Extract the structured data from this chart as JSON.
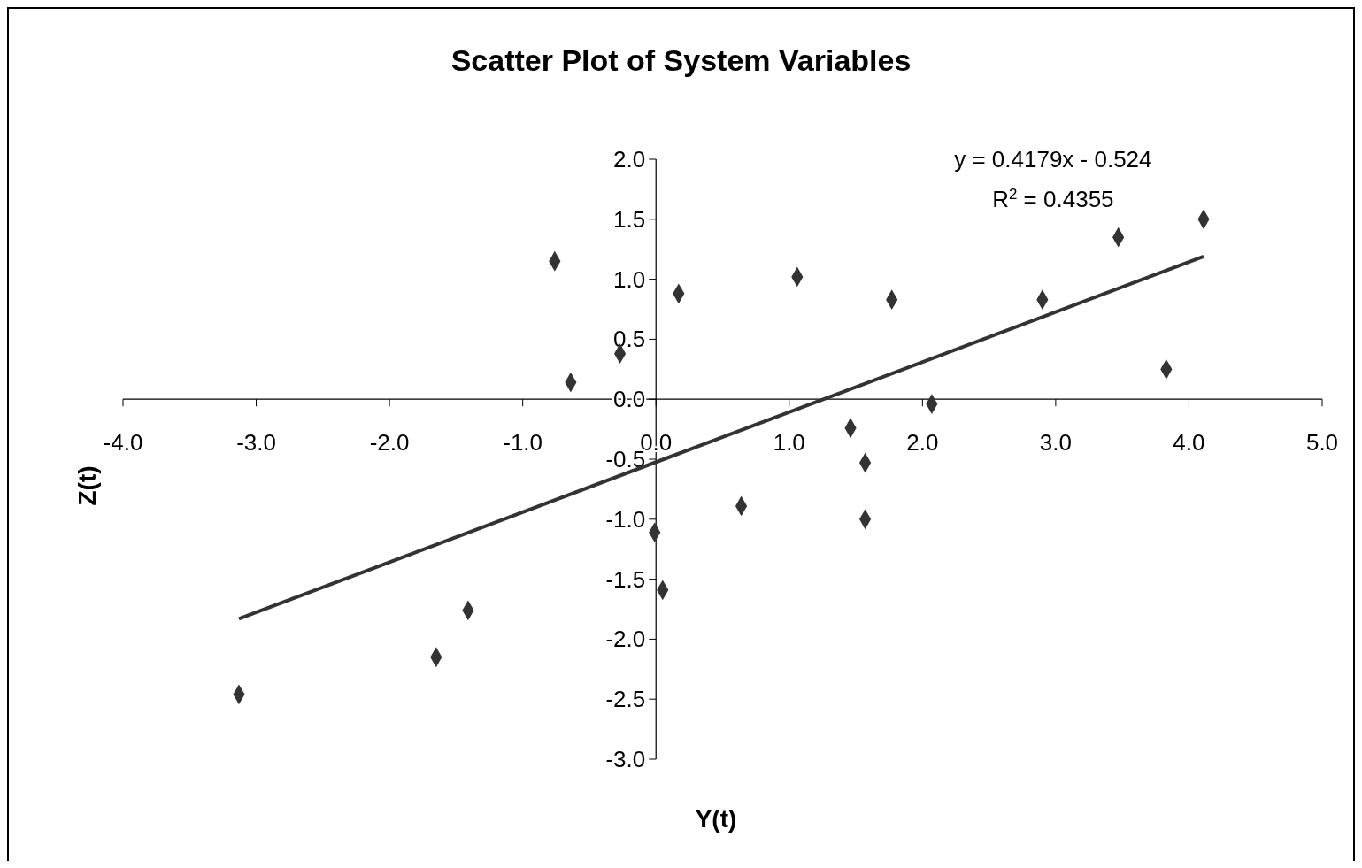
{
  "chart_data": {
    "type": "scatter",
    "title": "Scatter Plot of System Variables",
    "xlabel": "Y(t)",
    "ylabel": "Z(t)",
    "xlim": [
      -4.0,
      5.0
    ],
    "xticks": [
      {
        "value": -4,
        "label": "-4.0"
      },
      {
        "value": -3,
        "label": "-3.0"
      },
      {
        "value": -2,
        "label": "-2.0"
      },
      {
        "value": -1,
        "label": "-1.0"
      },
      {
        "value": 0,
        "label": "0.0"
      },
      {
        "value": 1,
        "label": "1.0"
      },
      {
        "value": 2,
        "label": "2.0"
      },
      {
        "value": 3,
        "label": "3.0"
      },
      {
        "value": 4,
        "label": "4.0"
      },
      {
        "value": 5,
        "label": "5.0"
      }
    ],
    "ylim": [
      -3.0,
      2.0
    ],
    "yticks": [
      {
        "value": -3,
        "label": "-3.0"
      },
      {
        "value": -2.5,
        "label": "-2.5"
      },
      {
        "value": -2,
        "label": "-2.0"
      },
      {
        "value": -1.5,
        "label": "-1.5"
      },
      {
        "value": -1,
        "label": "-1.0"
      },
      {
        "value": -0.5,
        "label": "-0.5"
      },
      {
        "value": 0,
        "label": "0.0"
      },
      {
        "value": 0.5,
        "label": "0.5"
      },
      {
        "value": 1,
        "label": "1.0"
      },
      {
        "value": 1.5,
        "label": "1.5"
      },
      {
        "value": 2,
        "label": "2.0"
      }
    ],
    "grid": false,
    "marker": "diamond",
    "annotations": [
      "y = 0.4179x - 0.524",
      "R$^{2}$ = 0.4355"
    ],
    "series": [
      {
        "color": "#333333",
        "x": [
          -3.13,
          -1.65,
          -1.41,
          -0.76,
          -0.64,
          -0.27,
          -0.01,
          0.05,
          0.17,
          0.64,
          1.06,
          1.46,
          1.57,
          1.57,
          1.77,
          2.07,
          2.9,
          3.47,
          3.83,
          4.11
        ],
        "values": [
          -2.46,
          -2.15,
          -1.76,
          1.15,
          0.14,
          0.38,
          -1.11,
          -1.59,
          0.88,
          -0.89,
          1.02,
          -0.24,
          -0.53,
          -1.0,
          0.83,
          -0.04,
          0.83,
          1.35,
          0.25,
          1.5
        ]
      },
      {
        "type": "line",
        "color": "#333333",
        "line_style": "solid",
        "marker": "none",
        "x": [
          -3.13,
          4.11
        ],
        "values": [
          -1.83,
          1.19
        ]
      }
    ]
  }
}
